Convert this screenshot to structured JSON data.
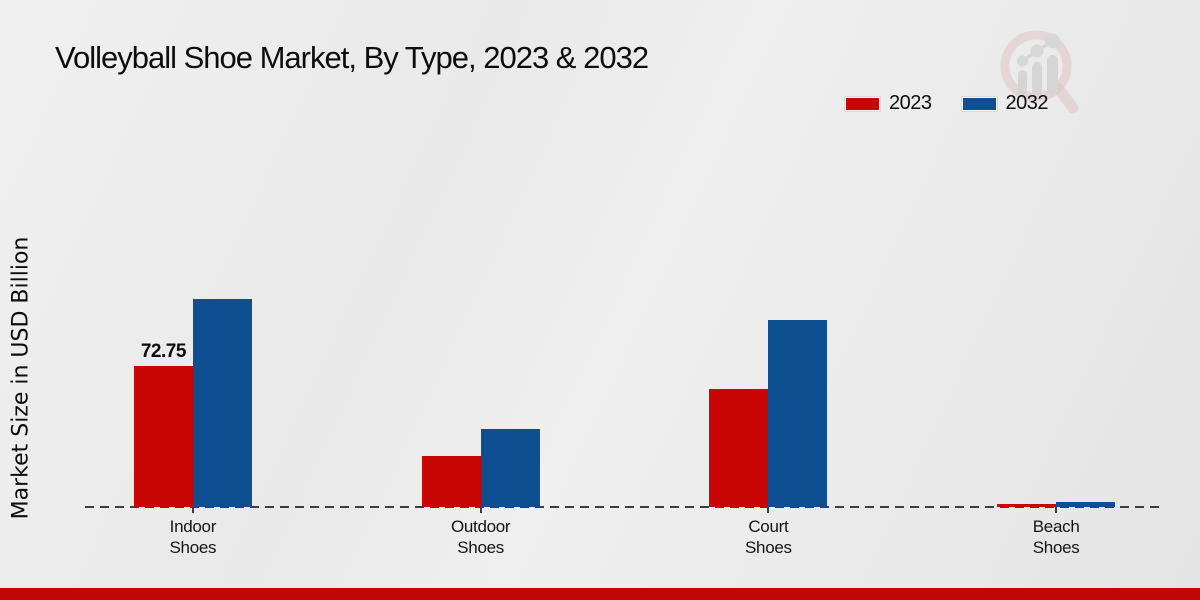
{
  "chart_data": {
    "type": "bar",
    "title": "Volleyball Shoe Market, By Type, 2023 & 2032",
    "xlabel": "",
    "ylabel": "Market Size in USD Billion",
    "categories": [
      "Indoor Shoes",
      "Outdoor Shoes",
      "Court Shoes",
      "Beach Shoes"
    ],
    "series": [
      {
        "name": "2023",
        "color": "#c90606",
        "values": [
          72.75,
          26.5,
          61,
          1.5
        ]
      },
      {
        "name": "2032",
        "color": "#0e4f91",
        "values": [
          107.5,
          40,
          96.5,
          2.5
        ]
      }
    ],
    "data_labels": [
      {
        "series": "2023",
        "category": "Indoor Shoes",
        "text": "72.75"
      }
    ],
    "ylim": [
      0,
      110
    ],
    "grid": false,
    "baseline_style": "dashed",
    "legend_position": "top-right"
  },
  "colors": {
    "series_2023": "#c90606",
    "series_2032": "#0e4f91",
    "footer_bar": "#c00606",
    "background": "#eaeaea"
  },
  "icons": {
    "watermark": "magnifier-growth-chart-logo"
  }
}
